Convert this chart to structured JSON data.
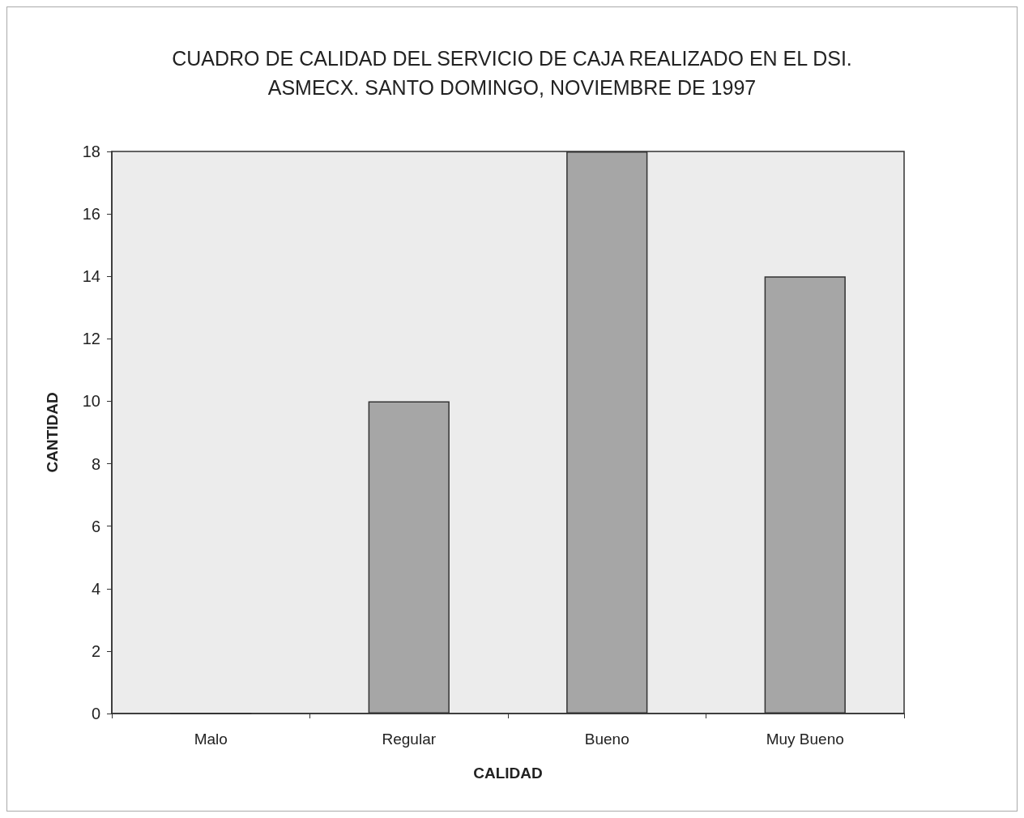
{
  "chart_data": {
    "type": "bar",
    "title": "CUADRO DE CALIDAD DEL SERVICIO DE CAJA REALIZADO EN EL DSI.\nASMECX. SANTO DOMINGO, NOVIEMBRE DE 1997",
    "xlabel": "CALIDAD",
    "ylabel": "CANTIDAD",
    "categories": [
      "Malo",
      "Regular",
      "Bueno",
      "Muy Bueno"
    ],
    "values": [
      0,
      10,
      18,
      14
    ],
    "color": "#a6a6a6",
    "ylim": [
      0,
      18
    ],
    "yticks": [
      0,
      2,
      4,
      6,
      8,
      10,
      12,
      14,
      16,
      18
    ],
    "grid": false
  }
}
